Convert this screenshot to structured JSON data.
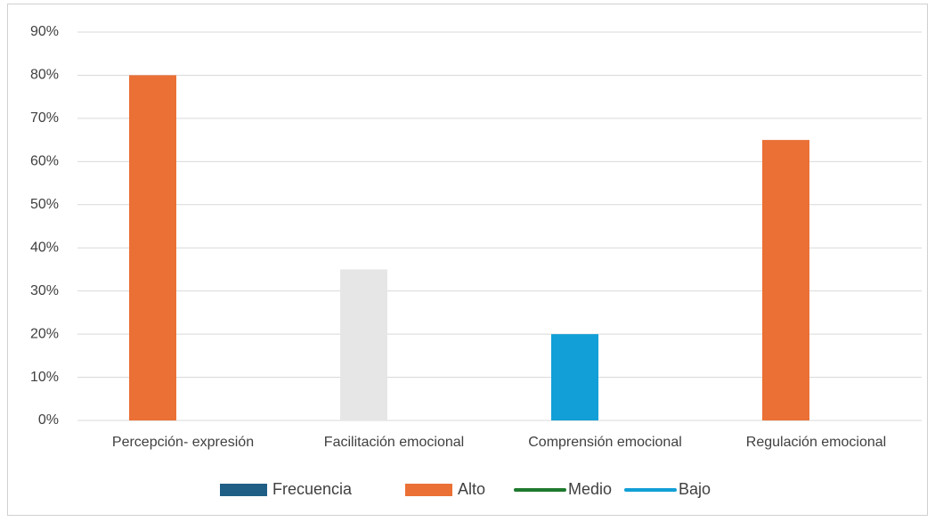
{
  "chart_data": {
    "type": "bar",
    "categories": [
      "Percepción- expresión",
      "Facilitación emocional",
      "Comprensión emocional",
      "Regulación emocional"
    ],
    "values": [
      80,
      35,
      20,
      65
    ],
    "colors": [
      "#ea7035",
      "#e6e6e6",
      "#129fd7",
      "#ea7035"
    ],
    "ylim": [
      0,
      90
    ],
    "yticks": [
      {
        "value": 0,
        "label": "0%"
      },
      {
        "value": 10,
        "label": "10%"
      },
      {
        "value": 20,
        "label": "20%"
      },
      {
        "value": 30,
        "label": "30%"
      },
      {
        "value": 40,
        "label": "40%"
      },
      {
        "value": 50,
        "label": "50%"
      },
      {
        "value": 60,
        "label": "60%"
      },
      {
        "value": 70,
        "label": "70%"
      },
      {
        "value": 80,
        "label": "80%"
      },
      {
        "value": 90,
        "label": "90%"
      }
    ],
    "grid": true,
    "legend_position": "bottom",
    "legend": [
      {
        "name": "Frecuencia",
        "color": "#1f5f86",
        "marker": "rect"
      },
      {
        "name": "Alto",
        "color": "#ea7035",
        "marker": "rect"
      },
      {
        "name": "Medio",
        "color": "#1e7a2e",
        "marker": "line"
      },
      {
        "name": "Bajo",
        "color": "#129fd7",
        "marker": "line"
      }
    ]
  }
}
